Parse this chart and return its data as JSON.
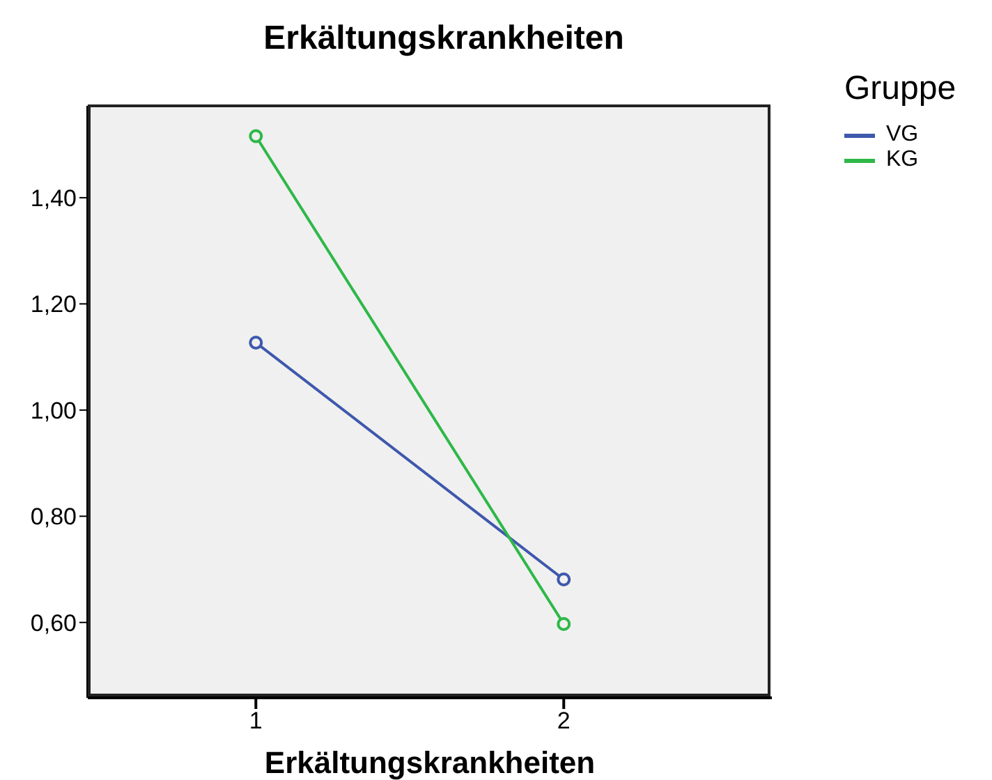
{
  "chart_data": {
    "type": "line",
    "title": "Erkältungskrankheiten",
    "xlabel": "Erkältungskrankheiten",
    "legend_title": "Gruppe",
    "categories": [
      "1",
      "2"
    ],
    "series": [
      {
        "name": "VG",
        "color": "#3e58ac",
        "values": [
          1.127,
          0.681
        ]
      },
      {
        "name": "KG",
        "color": "#2eb848",
        "values": [
          1.516,
          0.597
        ]
      }
    ],
    "ylim": [
      0.458,
      1.573
    ],
    "yticks": [
      {
        "value": 0.6,
        "label": "0,60"
      },
      {
        "value": 0.8,
        "label": "0,80"
      },
      {
        "value": 1.0,
        "label": "1,00"
      },
      {
        "value": 1.2,
        "label": "1,20"
      },
      {
        "value": 1.4,
        "label": "1,40"
      }
    ],
    "grid": false,
    "legend": "top right",
    "marker": "circle",
    "line_style": "solid"
  }
}
